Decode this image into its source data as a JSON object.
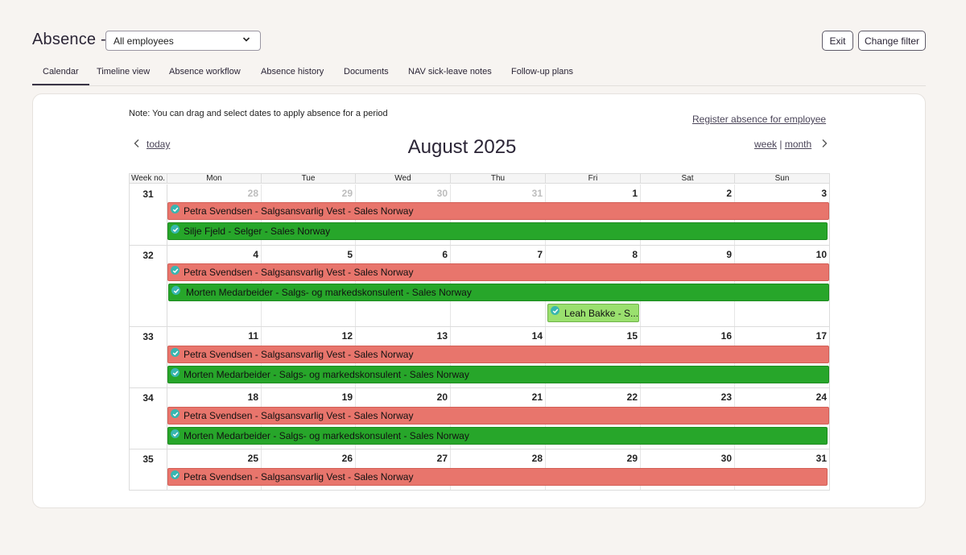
{
  "header": {
    "title": "Absence -",
    "employee_select": "All employees",
    "exit_label": "Exit",
    "change_filter_label": "Change filter"
  },
  "tabs": [
    {
      "label": "Calendar",
      "active": true
    },
    {
      "label": "Timeline view"
    },
    {
      "label": "Absence workflow"
    },
    {
      "label": "Absence history"
    },
    {
      "label": "Documents"
    },
    {
      "label": "NAV sick-leave notes"
    },
    {
      "label": "Follow-up plans"
    }
  ],
  "calendar": {
    "note": "Note: You can drag and select dates to apply absence for a period",
    "register_link": "Register absence for employee",
    "today_link": "today",
    "month_title": "August 2025",
    "week_link": "week",
    "separator": "|",
    "month_link": "month",
    "head": {
      "weekno": "Week no.",
      "days": [
        "Mon",
        "Tue",
        "Wed",
        "Thu",
        "Fri",
        "Sat",
        "Sun"
      ]
    },
    "weeks": [
      {
        "num": "31",
        "days": [
          "28",
          "29",
          "30",
          "31",
          "1",
          "2",
          "3"
        ]
      },
      {
        "num": "32",
        "days": [
          "4",
          "5",
          "6",
          "7",
          "8",
          "9",
          "10"
        ]
      },
      {
        "num": "33",
        "days": [
          "11",
          "12",
          "13",
          "14",
          "15",
          "16",
          "17"
        ]
      },
      {
        "num": "34",
        "days": [
          "18",
          "19",
          "20",
          "21",
          "22",
          "23",
          "24"
        ]
      },
      {
        "num": "35",
        "days": [
          "25",
          "26",
          "27",
          "28",
          "29",
          "30",
          "31"
        ]
      }
    ],
    "events": {
      "petra": "Petra Svendsen - Salgsansvarlig Vest - Sales Norway",
      "silje": "Silje Fjeld - Selger - Sales Norway",
      "morten": "Morten Medarbeider - Salgs- og markedskonsulent - Sales Norway",
      "leah": "Leah Bakke - S..."
    },
    "colors": {
      "red": "#e8756c",
      "green": "#27a62a",
      "lime": "#9ae06e",
      "check": "#38b6b0"
    }
  }
}
